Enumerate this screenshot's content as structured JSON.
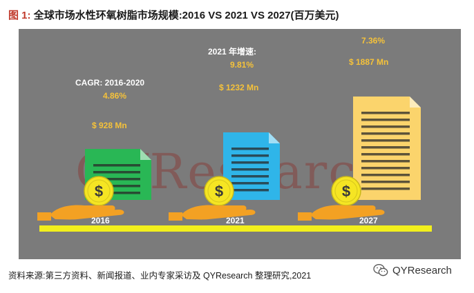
{
  "header": {
    "figure_label": "图 1:",
    "title": "全球市场水性环氧树脂市场规模:2016 VS 2021 VS 2027(百万美元)"
  },
  "chart_data": {
    "type": "bar",
    "title": "全球市场水性环氧树脂市场规模:2016 VS 2021 VS 2027(百万美元)",
    "categories": [
      "2016",
      "2021",
      "2027"
    ],
    "values": [
      928,
      1232,
      1887
    ],
    "value_labels": [
      "$ 928 Mn",
      "$ 1232 Mn",
      "$ 1887 Mn"
    ],
    "growth_titles": [
      "CAGR: 2016-2020",
      "2021 年增速:",
      ""
    ],
    "growth_values": [
      "4.86%",
      "9.81%",
      "7.36%"
    ],
    "watermark": "QYResearch",
    "colors": {
      "doc_2016": "#29b755",
      "doc_2021": "#2fb5e9",
      "doc_2027": "#fbd46c",
      "coin": "#f5e523",
      "hand": "#f3a123",
      "floor": "#f2ef1c",
      "background": "#7b7b7b"
    }
  },
  "footer": {
    "source": "资料来源:第三方资料、新闻报道、业内专家采访及 QYResearch 整理研究,2021",
    "logo_text": "QYResearch",
    "logo_icon": "wechat-icon"
  }
}
